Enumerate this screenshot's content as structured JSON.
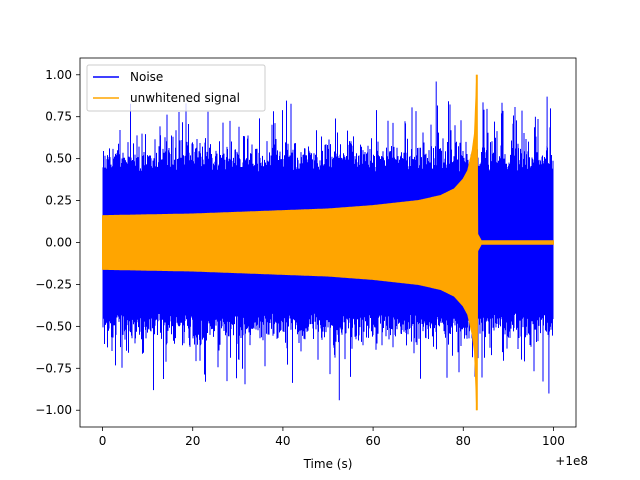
{
  "chart_data": {
    "type": "line",
    "title": "",
    "xlabel": "Time (s)",
    "ylabel": "",
    "x_offset_label": "+1e8",
    "xlim": [
      -5,
      105
    ],
    "ylim": [
      -1.1,
      1.1
    ],
    "xticks": [
      0,
      20,
      40,
      60,
      80,
      100
    ],
    "xtick_labels": [
      "0",
      "20",
      "40",
      "60",
      "80",
      "100"
    ],
    "yticks": [
      -1.0,
      -0.75,
      -0.5,
      -0.25,
      0.0,
      0.25,
      0.5,
      0.75,
      1.0
    ],
    "ytick_labels": [
      "−1.00",
      "−0.75",
      "−0.50",
      "−0.25",
      "0.00",
      "0.25",
      "0.50",
      "0.75",
      "1.00"
    ],
    "grid": false,
    "legend_position": "top-left",
    "series": [
      {
        "name": "Noise",
        "color": "#0000ff",
        "x": [
          0,
          100
        ],
        "y_max": 0.96,
        "y_min": -0.94,
        "typical_envelope": 0.5
      },
      {
        "name": "unwhitened signal",
        "color": "#ffa500",
        "x": [
          0,
          10,
          20,
          30,
          40,
          50,
          60,
          70,
          75,
          78,
          80,
          81,
          82,
          82.5,
          83,
          83.2,
          84,
          100
        ],
        "envelope": [
          0.16,
          0.165,
          0.17,
          0.18,
          0.19,
          0.2,
          0.22,
          0.25,
          0.28,
          0.32,
          0.38,
          0.43,
          0.55,
          0.65,
          1.0,
          0.05,
          0.01,
          0.01
        ]
      }
    ]
  }
}
